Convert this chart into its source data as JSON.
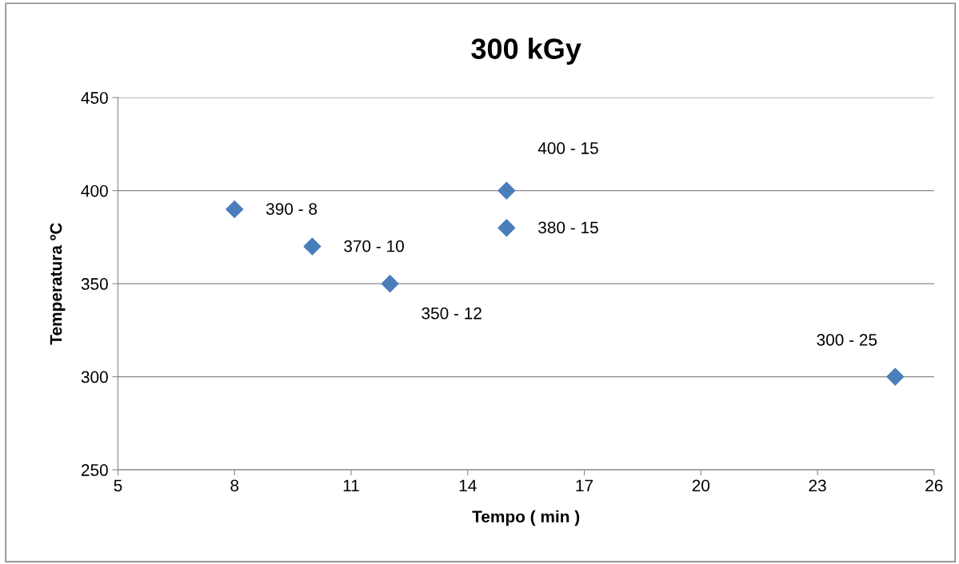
{
  "chart_data": {
    "type": "scatter",
    "title": "300 kGy",
    "xlabel": "Tempo ( min )",
    "ylabel": "Temperatura ºC",
    "series": [
      {
        "color": "#4a7ebb",
        "x": [
          8,
          10,
          12,
          15,
          15,
          25
        ],
        "values": [
          390,
          370,
          350,
          400,
          380,
          300
        ]
      }
    ],
    "xlim": [
      5,
      26
    ],
    "xticks": [
      5,
      8,
      11,
      14,
      17,
      20,
      23,
      26
    ],
    "ylim": [
      250,
      450
    ],
    "yticks": [
      250,
      300,
      350,
      400,
      450
    ],
    "grid": "y",
    "marker": "diamond",
    "legend": false,
    "annotations": [
      {
        "text": "390 - 8",
        "x": 8,
        "y": 390
      },
      {
        "text": "370 - 10",
        "x": 10,
        "y": 370
      },
      {
        "text": "350 - 12",
        "x": 12,
        "y": 350
      },
      {
        "text": "400 - 15",
        "x": 15,
        "y": 400
      },
      {
        "text": "380 - 15",
        "x": 15,
        "y": 380
      },
      {
        "text": "300 - 25",
        "x": 25,
        "y": 300
      }
    ]
  }
}
